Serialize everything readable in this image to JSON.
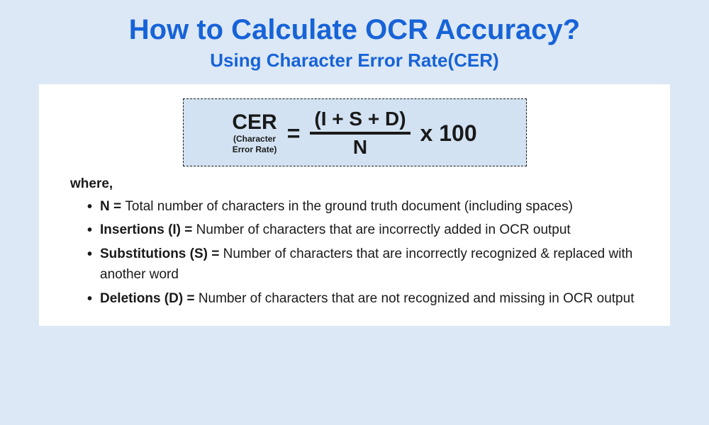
{
  "header": {
    "title": "How to Calculate OCR Accuracy?",
    "subtitle": "Using Character Error Rate(CER)"
  },
  "formula": {
    "label_main": "CER",
    "label_sub1": "(Character",
    "label_sub2": "Error Rate)",
    "equals": "=",
    "numerator": "(I + S + D)",
    "denominator": "N",
    "multiplier": "x 100"
  },
  "where_label": "where,",
  "definitions": [
    {
      "term": "N = ",
      "desc": "Total number of characters in the ground truth document (including spaces)"
    },
    {
      "term": "Insertions (I) = ",
      "desc": "Number of characters that are incorrectly added in OCR output"
    },
    {
      "term": "Substitutions (S) = ",
      "desc": "Number of characters that are incorrectly recognized & replaced with another word"
    },
    {
      "term": "Deletions (D) = ",
      "desc": "Number of characters that are not recognized and missing in OCR output"
    }
  ],
  "colors": {
    "page_bg": "#dce8f5",
    "box_bg": "#ffffff",
    "formula_bg": "#d2e2f2",
    "accent": "#1763d8",
    "text": "#1a1a1a"
  }
}
